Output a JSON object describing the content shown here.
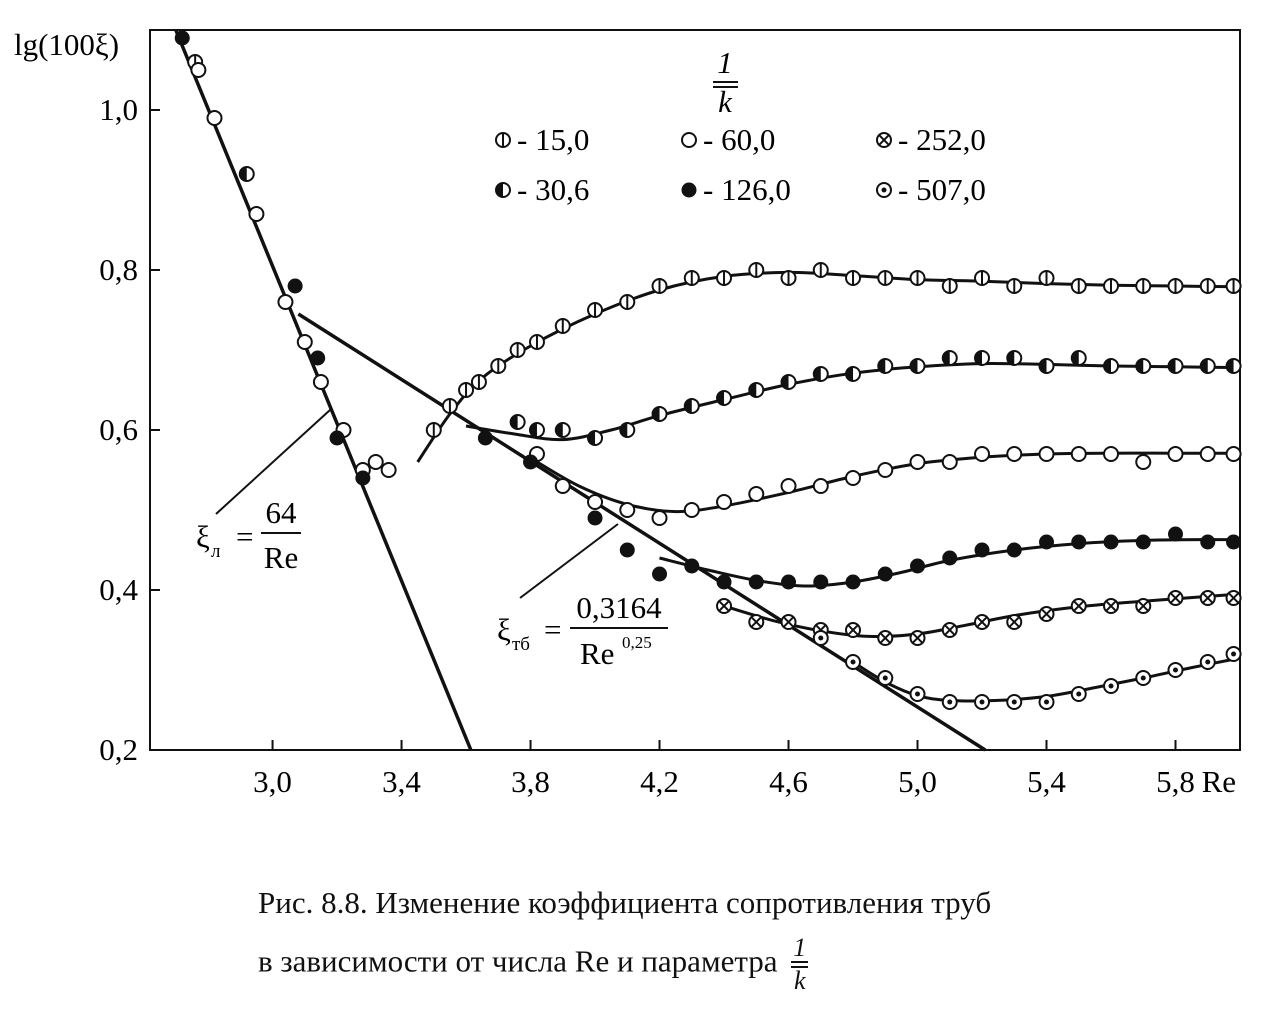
{
  "chart_data": {
    "type": "scatter",
    "ylabel": "lg(100ξ)",
    "xlabel": "Re",
    "xlim": [
      2.62,
      6.0
    ],
    "ylim": [
      0.2,
      1.1
    ],
    "x_ticks": [
      "3,0",
      "3,4",
      "3,8",
      "4,2",
      "4,6",
      "5,0",
      "5,4",
      "5,8"
    ],
    "x_tick_values": [
      3.0,
      3.4,
      3.8,
      4.2,
      4.6,
      5.0,
      5.4,
      5.8
    ],
    "y_ticks": [
      "0,2",
      "0,4",
      "0,6",
      "0,8",
      "1,0"
    ],
    "y_tick_values": [
      0.2,
      0.4,
      0.6,
      0.8,
      1.0
    ],
    "legend_title_num": "1",
    "legend_title_den": "k",
    "legend_placement": "top-center",
    "series": [
      {
        "name": "- 15,0",
        "marker": "half-vertical",
        "points": [
          [
            2.76,
            1.06
          ],
          [
            3.5,
            0.6
          ],
          [
            3.55,
            0.63
          ],
          [
            3.6,
            0.65
          ],
          [
            3.64,
            0.66
          ],
          [
            3.7,
            0.68
          ],
          [
            3.76,
            0.7
          ],
          [
            3.82,
            0.71
          ],
          [
            3.9,
            0.73
          ],
          [
            4.0,
            0.75
          ],
          [
            4.1,
            0.76
          ],
          [
            4.2,
            0.78
          ],
          [
            4.3,
            0.79
          ],
          [
            4.4,
            0.79
          ],
          [
            4.5,
            0.8
          ],
          [
            4.6,
            0.79
          ],
          [
            4.7,
            0.8
          ],
          [
            4.8,
            0.79
          ],
          [
            4.9,
            0.79
          ],
          [
            5.0,
            0.79
          ],
          [
            5.1,
            0.78
          ],
          [
            5.2,
            0.79
          ],
          [
            5.3,
            0.78
          ],
          [
            5.4,
            0.79
          ],
          [
            5.5,
            0.78
          ],
          [
            5.6,
            0.78
          ],
          [
            5.7,
            0.78
          ],
          [
            5.8,
            0.78
          ],
          [
            5.9,
            0.78
          ],
          [
            5.98,
            0.78
          ]
        ],
        "curve": [
          [
            3.45,
            0.56
          ],
          [
            3.55,
            0.62
          ],
          [
            3.65,
            0.665
          ],
          [
            3.8,
            0.705
          ],
          [
            4.0,
            0.745
          ],
          [
            4.2,
            0.775
          ],
          [
            4.4,
            0.792
          ],
          [
            4.6,
            0.797
          ],
          [
            4.8,
            0.793
          ],
          [
            5.0,
            0.788
          ],
          [
            5.2,
            0.786
          ],
          [
            5.4,
            0.783
          ],
          [
            5.6,
            0.781
          ],
          [
            5.8,
            0.78
          ],
          [
            6.0,
            0.779
          ]
        ]
      },
      {
        "name": "- 30,6",
        "marker": "half-horizontal",
        "points": [
          [
            2.92,
            0.92
          ],
          [
            3.76,
            0.61
          ],
          [
            3.82,
            0.6
          ],
          [
            3.9,
            0.6
          ],
          [
            4.0,
            0.59
          ],
          [
            4.1,
            0.6
          ],
          [
            4.2,
            0.62
          ],
          [
            4.3,
            0.63
          ],
          [
            4.4,
            0.64
          ],
          [
            4.5,
            0.65
          ],
          [
            4.6,
            0.66
          ],
          [
            4.7,
            0.67
          ],
          [
            4.8,
            0.67
          ],
          [
            4.9,
            0.68
          ],
          [
            5.0,
            0.68
          ],
          [
            5.1,
            0.69
          ],
          [
            5.2,
            0.69
          ],
          [
            5.3,
            0.69
          ],
          [
            5.4,
            0.68
          ],
          [
            5.5,
            0.69
          ],
          [
            5.6,
            0.68
          ],
          [
            5.7,
            0.68
          ],
          [
            5.8,
            0.68
          ],
          [
            5.9,
            0.68
          ],
          [
            5.98,
            0.68
          ]
        ],
        "curve": [
          [
            3.6,
            0.605
          ],
          [
            3.75,
            0.595
          ],
          [
            3.9,
            0.588
          ],
          [
            4.05,
            0.6
          ],
          [
            4.2,
            0.618
          ],
          [
            4.4,
            0.638
          ],
          [
            4.6,
            0.657
          ],
          [
            4.8,
            0.671
          ],
          [
            5.0,
            0.679
          ],
          [
            5.2,
            0.683
          ],
          [
            5.4,
            0.682
          ],
          [
            5.6,
            0.68
          ],
          [
            5.8,
            0.679
          ],
          [
            6.0,
            0.678
          ]
        ]
      },
      {
        "name": "- 60,0",
        "marker": "open",
        "points": [
          [
            2.77,
            1.05
          ],
          [
            2.82,
            0.99
          ],
          [
            2.95,
            0.87
          ],
          [
            3.04,
            0.76
          ],
          [
            3.1,
            0.71
          ],
          [
            3.15,
            0.66
          ],
          [
            3.22,
            0.6
          ],
          [
            3.28,
            0.55
          ],
          [
            3.32,
            0.56
          ],
          [
            3.36,
            0.55
          ],
          [
            3.82,
            0.57
          ],
          [
            3.9,
            0.53
          ],
          [
            4.0,
            0.51
          ],
          [
            4.1,
            0.5
          ],
          [
            4.2,
            0.49
          ],
          [
            4.3,
            0.5
          ],
          [
            4.4,
            0.51
          ],
          [
            4.5,
            0.52
          ],
          [
            4.6,
            0.53
          ],
          [
            4.7,
            0.53
          ],
          [
            4.8,
            0.54
          ],
          [
            4.9,
            0.55
          ],
          [
            5.0,
            0.56
          ],
          [
            5.1,
            0.56
          ],
          [
            5.2,
            0.57
          ],
          [
            5.3,
            0.57
          ],
          [
            5.4,
            0.57
          ],
          [
            5.5,
            0.57
          ],
          [
            5.6,
            0.57
          ],
          [
            5.7,
            0.56
          ],
          [
            5.8,
            0.57
          ],
          [
            5.9,
            0.57
          ],
          [
            5.98,
            0.57
          ]
        ],
        "curve": [
          [
            3.8,
            0.565
          ],
          [
            3.95,
            0.53
          ],
          [
            4.1,
            0.507
          ],
          [
            4.25,
            0.498
          ],
          [
            4.4,
            0.505
          ],
          [
            4.6,
            0.522
          ],
          [
            4.8,
            0.542
          ],
          [
            5.0,
            0.558
          ],
          [
            5.2,
            0.566
          ],
          [
            5.4,
            0.57
          ],
          [
            5.6,
            0.571
          ],
          [
            5.8,
            0.571
          ],
          [
            6.0,
            0.571
          ]
        ]
      },
      {
        "name": "- 126,0",
        "marker": "filled",
        "points": [
          [
            2.72,
            1.09
          ],
          [
            3.07,
            0.78
          ],
          [
            3.14,
            0.69
          ],
          [
            3.2,
            0.59
          ],
          [
            3.28,
            0.54
          ],
          [
            3.66,
            0.59
          ],
          [
            3.8,
            0.56
          ],
          [
            4.0,
            0.49
          ],
          [
            4.1,
            0.45
          ],
          [
            4.2,
            0.42
          ],
          [
            4.3,
            0.43
          ],
          [
            4.4,
            0.41
          ],
          [
            4.5,
            0.41
          ],
          [
            4.6,
            0.41
          ],
          [
            4.7,
            0.41
          ],
          [
            4.8,
            0.41
          ],
          [
            4.9,
            0.42
          ],
          [
            5.0,
            0.43
          ],
          [
            5.1,
            0.44
          ],
          [
            5.2,
            0.45
          ],
          [
            5.3,
            0.45
          ],
          [
            5.4,
            0.46
          ],
          [
            5.5,
            0.46
          ],
          [
            5.6,
            0.46
          ],
          [
            5.7,
            0.46
          ],
          [
            5.8,
            0.47
          ],
          [
            5.9,
            0.46
          ],
          [
            5.98,
            0.46
          ]
        ],
        "curve": [
          [
            4.2,
            0.44
          ],
          [
            4.35,
            0.425
          ],
          [
            4.5,
            0.412
          ],
          [
            4.65,
            0.405
          ],
          [
            4.8,
            0.41
          ],
          [
            4.95,
            0.422
          ],
          [
            5.1,
            0.437
          ],
          [
            5.3,
            0.45
          ],
          [
            5.5,
            0.458
          ],
          [
            5.7,
            0.462
          ],
          [
            5.9,
            0.463
          ],
          [
            6.0,
            0.463
          ]
        ]
      },
      {
        "name": "- 252,0",
        "marker": "crossed",
        "points": [
          [
            4.4,
            0.38
          ],
          [
            4.5,
            0.36
          ],
          [
            4.6,
            0.36
          ],
          [
            4.7,
            0.35
          ],
          [
            4.8,
            0.35
          ],
          [
            4.9,
            0.34
          ],
          [
            5.0,
            0.34
          ],
          [
            5.1,
            0.35
          ],
          [
            5.2,
            0.36
          ],
          [
            5.3,
            0.36
          ],
          [
            5.4,
            0.37
          ],
          [
            5.5,
            0.38
          ],
          [
            5.6,
            0.38
          ],
          [
            5.7,
            0.38
          ],
          [
            5.8,
            0.39
          ],
          [
            5.9,
            0.39
          ],
          [
            5.98,
            0.39
          ]
        ],
        "curve": [
          [
            4.4,
            0.38
          ],
          [
            4.55,
            0.362
          ],
          [
            4.7,
            0.349
          ],
          [
            4.85,
            0.342
          ],
          [
            5.0,
            0.345
          ],
          [
            5.15,
            0.356
          ],
          [
            5.3,
            0.368
          ],
          [
            5.5,
            0.379
          ],
          [
            5.7,
            0.386
          ],
          [
            5.9,
            0.392
          ],
          [
            6.0,
            0.395
          ]
        ]
      },
      {
        "name": "- 507,0",
        "marker": "dotted",
        "points": [
          [
            4.7,
            0.34
          ],
          [
            4.8,
            0.31
          ],
          [
            4.9,
            0.29
          ],
          [
            5.0,
            0.27
          ],
          [
            5.1,
            0.26
          ],
          [
            5.2,
            0.26
          ],
          [
            5.3,
            0.26
          ],
          [
            5.4,
            0.26
          ],
          [
            5.5,
            0.27
          ],
          [
            5.6,
            0.28
          ],
          [
            5.7,
            0.29
          ],
          [
            5.8,
            0.3
          ],
          [
            5.9,
            0.31
          ],
          [
            5.98,
            0.32
          ]
        ],
        "curve": [
          [
            4.8,
            0.31
          ],
          [
            4.9,
            0.285
          ],
          [
            5.0,
            0.268
          ],
          [
            5.1,
            0.262
          ],
          [
            5.25,
            0.262
          ],
          [
            5.4,
            0.267
          ],
          [
            5.55,
            0.278
          ],
          [
            5.7,
            0.29
          ],
          [
            5.85,
            0.303
          ],
          [
            6.0,
            0.315
          ]
        ]
      }
    ],
    "reference_lines": [
      {
        "name": "laminar",
        "points": [
          [
            2.7,
            1.1
          ],
          [
            3.615,
            0.2
          ]
        ]
      },
      {
        "name": "turbulent",
        "points": [
          [
            3.08,
            0.745
          ],
          [
            5.21,
            0.2
          ]
        ]
      }
    ],
    "annotations": {
      "laminar_symbol": "ξ",
      "laminar_sub": "л",
      "laminar_num": "64",
      "laminar_den": "Re",
      "turbulent_symbol": "ξ",
      "turbulent_sub": "тб",
      "turbulent_num": "0,3164",
      "turbulent_den": "Re",
      "turbulent_den_exp": "0,25",
      "equals": "="
    }
  },
  "caption": {
    "line1": "Рис. 8.8. Изменение коэффициента сопротивления труб",
    "line2": "в зависимости от числа Re и параметра",
    "frac_num": "1",
    "frac_den": "k"
  }
}
